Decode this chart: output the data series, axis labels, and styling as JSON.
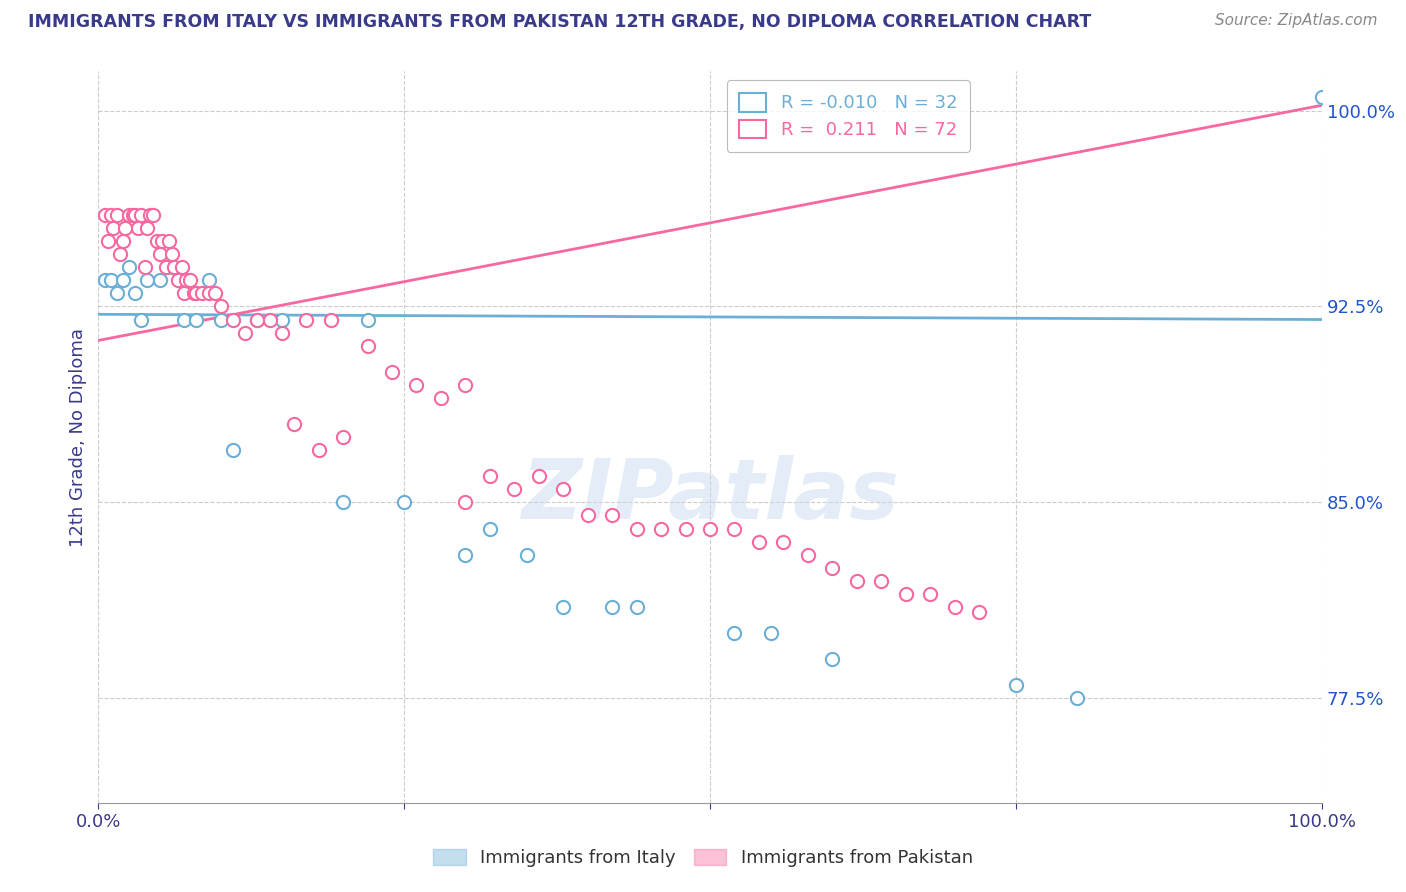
{
  "title": "IMMIGRANTS FROM ITALY VS IMMIGRANTS FROM PAKISTAN 12TH GRADE, NO DIPLOMA CORRELATION CHART",
  "source": "Source: ZipAtlas.com",
  "ylabel": "12th Grade, No Diploma",
  "xlim": [
    0,
    1.0
  ],
  "ylim": [
    0.735,
    1.015
  ],
  "y_tick_labels_right": [
    "77.5%",
    "85.0%",
    "92.5%",
    "100.0%"
  ],
  "y_tick_values_right": [
    0.775,
    0.85,
    0.925,
    1.0
  ],
  "italy_color": "#6baed6",
  "pakistan_color": "#f768a1",
  "italy_R": -0.01,
  "italy_N": 32,
  "pakistan_R": 0.211,
  "pakistan_N": 72,
  "italy_scatter_x": [
    0.005,
    0.01,
    0.015,
    0.02,
    0.025,
    0.03,
    0.035,
    0.04,
    0.05,
    0.06,
    0.07,
    0.08,
    0.09,
    0.1,
    0.11,
    0.13,
    0.15,
    0.2,
    0.22,
    0.25,
    0.3,
    0.32,
    0.35,
    0.38,
    0.42,
    0.44,
    0.52,
    0.55,
    0.6,
    0.75,
    0.8,
    1.0
  ],
  "italy_scatter_y": [
    0.935,
    0.935,
    0.93,
    0.935,
    0.94,
    0.93,
    0.92,
    0.935,
    0.935,
    0.94,
    0.92,
    0.92,
    0.935,
    0.92,
    0.87,
    0.92,
    0.92,
    0.85,
    0.92,
    0.85,
    0.83,
    0.84,
    0.83,
    0.81,
    0.81,
    0.81,
    0.8,
    0.8,
    0.79,
    0.78,
    0.775,
    1.005
  ],
  "pakistan_scatter_x": [
    0.005,
    0.008,
    0.01,
    0.012,
    0.015,
    0.018,
    0.02,
    0.022,
    0.025,
    0.028,
    0.03,
    0.032,
    0.035,
    0.038,
    0.04,
    0.042,
    0.045,
    0.048,
    0.05,
    0.052,
    0.055,
    0.058,
    0.06,
    0.062,
    0.065,
    0.068,
    0.07,
    0.072,
    0.075,
    0.078,
    0.08,
    0.085,
    0.09,
    0.095,
    0.1,
    0.11,
    0.12,
    0.13,
    0.14,
    0.15,
    0.16,
    0.17,
    0.18,
    0.19,
    0.2,
    0.22,
    0.24,
    0.26,
    0.28,
    0.3,
    0.3,
    0.32,
    0.34,
    0.36,
    0.38,
    0.4,
    0.42,
    0.44,
    0.46,
    0.48,
    0.5,
    0.52,
    0.54,
    0.56,
    0.58,
    0.6,
    0.62,
    0.64,
    0.66,
    0.68,
    0.7,
    0.72
  ],
  "pakistan_scatter_y": [
    0.96,
    0.95,
    0.96,
    0.955,
    0.96,
    0.945,
    0.95,
    0.955,
    0.96,
    0.96,
    0.96,
    0.955,
    0.96,
    0.94,
    0.955,
    0.96,
    0.96,
    0.95,
    0.945,
    0.95,
    0.94,
    0.95,
    0.945,
    0.94,
    0.935,
    0.94,
    0.93,
    0.935,
    0.935,
    0.93,
    0.93,
    0.93,
    0.93,
    0.93,
    0.925,
    0.92,
    0.915,
    0.92,
    0.92,
    0.915,
    0.88,
    0.92,
    0.87,
    0.92,
    0.875,
    0.91,
    0.9,
    0.895,
    0.89,
    0.895,
    0.85,
    0.86,
    0.855,
    0.86,
    0.855,
    0.845,
    0.845,
    0.84,
    0.84,
    0.84,
    0.84,
    0.84,
    0.835,
    0.835,
    0.83,
    0.825,
    0.82,
    0.82,
    0.815,
    0.815,
    0.81,
    0.808
  ],
  "italy_line_x": [
    0.0,
    1.0
  ],
  "italy_line_y": [
    0.922,
    0.92
  ],
  "pakistan_line_x": [
    0.0,
    1.0
  ],
  "pakistan_line_y": [
    0.912,
    1.002
  ],
  "watermark": "ZIPatlas",
  "background_color": "#ffffff",
  "grid_color": "#cccccc",
  "title_color": "#3a3a8a",
  "axis_label_color": "#3a3a8a",
  "right_tick_color": "#2255cc",
  "bottom_legend_labels": [
    "Immigrants from Italy",
    "Immigrants from Pakistan"
  ]
}
